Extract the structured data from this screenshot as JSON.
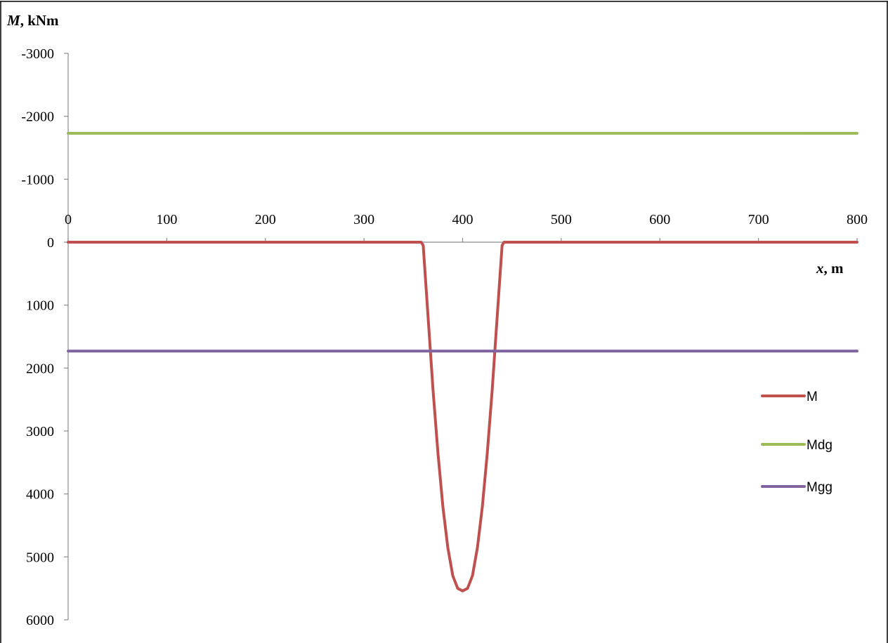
{
  "chart_data": {
    "type": "line",
    "ylabel_italic": "M",
    "ylabel_rest": ", kNm",
    "xlabel_italic": "x",
    "xlabel_rest": ", m",
    "xlim": [
      0,
      800
    ],
    "ylim": [
      -3000,
      6000
    ],
    "y_reversed": true,
    "x_ticks": [
      0,
      100,
      200,
      300,
      400,
      500,
      600,
      700,
      800
    ],
    "y_ticks": [
      -3000,
      -2000,
      -1000,
      0,
      1000,
      2000,
      3000,
      4000,
      5000,
      6000
    ],
    "grid": false,
    "legend_position": "right",
    "series": [
      {
        "name": "M",
        "color": "#c0504d",
        "x": [
          0,
          100,
          200,
          300,
          358,
          360,
          365,
          370,
          375,
          380,
          385,
          390,
          395,
          400,
          405,
          410,
          415,
          420,
          425,
          430,
          435,
          440,
          442,
          500,
          600,
          700,
          800
        ],
        "y": [
          0,
          0,
          0,
          0,
          0,
          50,
          1200,
          2350,
          3350,
          4200,
          4850,
          5300,
          5500,
          5540,
          5500,
          5300,
          4850,
          4200,
          3350,
          2350,
          1200,
          50,
          0,
          0,
          0,
          0,
          0
        ]
      },
      {
        "name": "Mdg",
        "color": "#9bbb59",
        "x": [
          0,
          800
        ],
        "y": [
          -1730,
          -1730
        ]
      },
      {
        "name": "Mgg",
        "color": "#8064a2",
        "x": [
          0,
          800
        ],
        "y": [
          1730,
          1730
        ]
      }
    ]
  }
}
